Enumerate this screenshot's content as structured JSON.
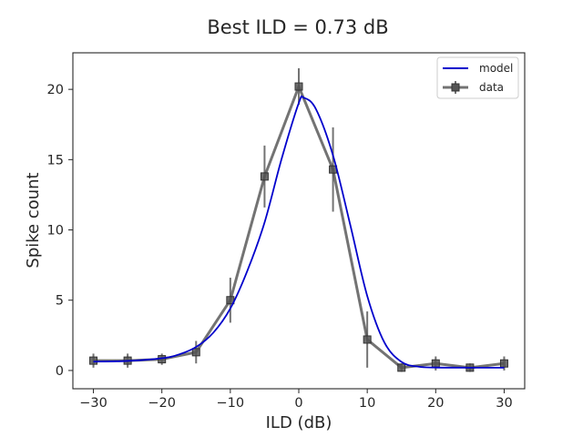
{
  "chart_data": {
    "type": "line",
    "title": "Best ILD = 0.73 dB",
    "xlabel": "ILD (dB)",
    "ylabel": "Spike count",
    "xlim": [
      -33,
      33
    ],
    "ylim": [
      -1.3,
      22.6
    ],
    "xticks": [
      -30,
      -20,
      -10,
      0,
      10,
      20,
      30
    ],
    "xtick_labels": [
      "−30",
      "−20",
      "−10",
      "0",
      "10",
      "20",
      "30"
    ],
    "yticks": [
      0,
      5,
      10,
      15,
      20
    ],
    "ytick_labels": [
      "0",
      "5",
      "10",
      "15",
      "20"
    ],
    "grid": false,
    "legend": {
      "position": "top-right",
      "entries": [
        "model",
        "data"
      ]
    },
    "series": [
      {
        "name": "model",
        "style": "line",
        "color": "#0000cc",
        "x": [
          -30,
          -25,
          -20,
          -17.5,
          -15,
          -12.5,
          -10,
          -7.5,
          -5,
          -2.5,
          0,
          0.73,
          2.5,
          5,
          7.5,
          10,
          12.5,
          15,
          17.5,
          20,
          25,
          30
        ],
        "y": [
          0.63,
          0.68,
          0.87,
          1.14,
          1.67,
          2.68,
          4.41,
          7.11,
          10.53,
          15.07,
          19.03,
          19.4,
          18.6,
          15.3,
          10.4,
          5.3,
          2.0,
          0.61,
          0.27,
          0.21,
          0.2,
          0.2
        ]
      },
      {
        "name": "data",
        "style": "line+marker",
        "marker": "square",
        "color": "#505050",
        "x": [
          -30,
          -25,
          -20,
          -15,
          -10,
          -5,
          0,
          5,
          10,
          15,
          20,
          25,
          30
        ],
        "y": [
          0.7,
          0.7,
          0.8,
          1.3,
          5.0,
          13.8,
          20.2,
          14.3,
          2.2,
          0.2,
          0.5,
          0.2,
          0.5
        ],
        "err": [
          0.5,
          0.5,
          0.4,
          0.8,
          1.6,
          2.2,
          1.3,
          3.0,
          2.0,
          0.3,
          0.5,
          0.3,
          0.5
        ]
      }
    ]
  }
}
